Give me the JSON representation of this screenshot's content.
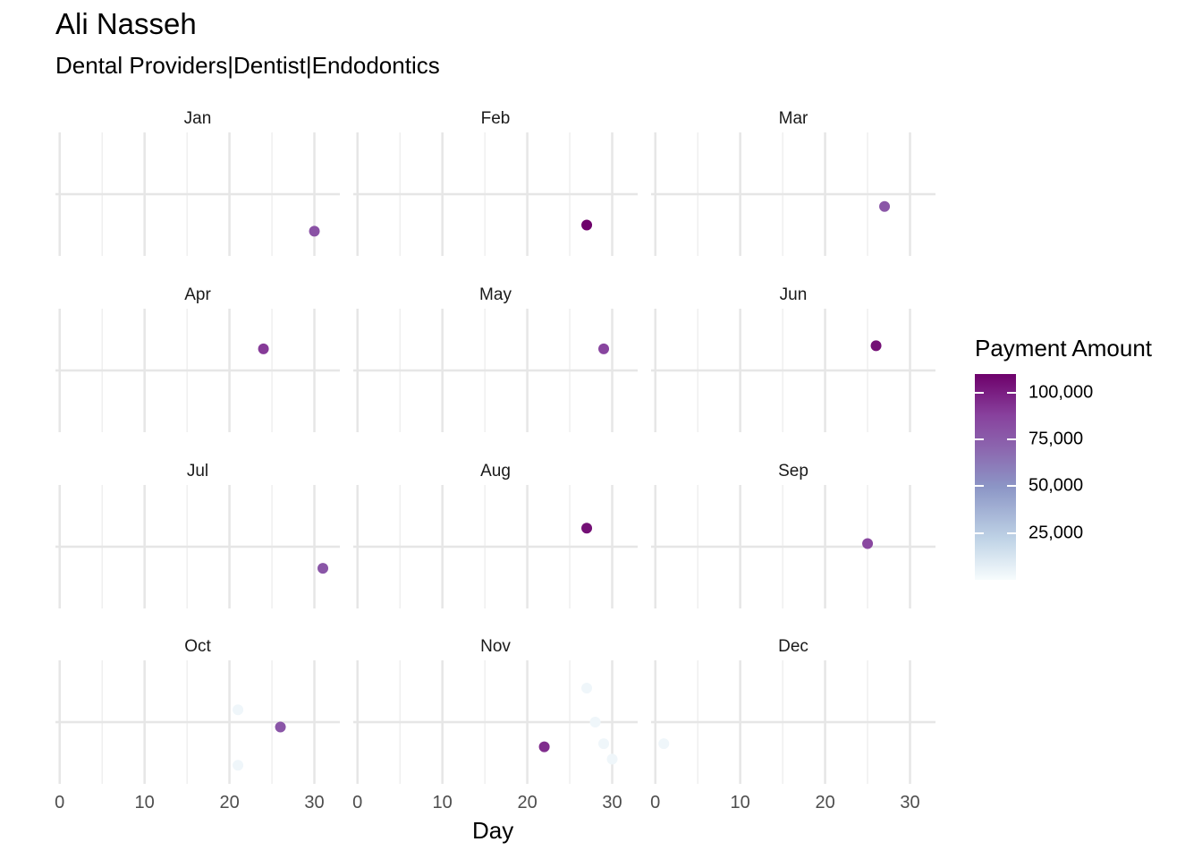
{
  "chart_data": {
    "type": "scatter",
    "title": "Ali Nasseh",
    "subtitle": "Dental Providers|Dentist|Endodontics",
    "xlabel": "Day",
    "ylabel": "",
    "xlim": [
      -0.5,
      33
    ],
    "xticks": [
      0,
      10,
      20,
      30
    ],
    "facet_by": "month",
    "grid": true,
    "legend": {
      "title": "Payment Amount",
      "position": "right",
      "type": "colorbar",
      "range": [
        0,
        110000
      ],
      "ticks": [
        100000,
        75000,
        50000,
        25000
      ],
      "tick_labels": [
        "100,000",
        "75,000",
        "50,000",
        "25,000"
      ],
      "colors": [
        "#f7fcfd",
        "#bfd3e6",
        "#8c96c6",
        "#8c6bb1",
        "#88419d",
        "#6e016b"
      ]
    },
    "facets": [
      {
        "month": "Jan",
        "points": [
          {
            "x": 30,
            "y": -0.6,
            "amount": 80000
          }
        ]
      },
      {
        "month": "Feb",
        "points": [
          {
            "x": 27,
            "y": -0.5,
            "amount": 110000
          }
        ]
      },
      {
        "month": "Mar",
        "points": [
          {
            "x": 27,
            "y": -0.2,
            "amount": 78000
          }
        ]
      },
      {
        "month": "Apr",
        "points": [
          {
            "x": 24,
            "y": 0.35,
            "amount": 90000
          }
        ]
      },
      {
        "month": "May",
        "points": [
          {
            "x": 29,
            "y": 0.35,
            "amount": 86000
          }
        ]
      },
      {
        "month": "Jun",
        "points": [
          {
            "x": 26,
            "y": 0.4,
            "amount": 105000
          }
        ]
      },
      {
        "month": "Jul",
        "points": [
          {
            "x": 31,
            "y": -0.35,
            "amount": 78000
          }
        ]
      },
      {
        "month": "Aug",
        "points": [
          {
            "x": 27,
            "y": 0.3,
            "amount": 105000
          }
        ]
      },
      {
        "month": "Sep",
        "points": [
          {
            "x": 25,
            "y": 0.05,
            "amount": 85000
          }
        ]
      },
      {
        "month": "Oct",
        "points": [
          {
            "x": 21,
            "y": 0.2,
            "amount": 3000
          },
          {
            "x": 26,
            "y": -0.08,
            "amount": 78000
          },
          {
            "x": 21,
            "y": -0.7,
            "amount": 3000
          }
        ]
      },
      {
        "month": "Nov",
        "points": [
          {
            "x": 27,
            "y": 0.55,
            "amount": 3000
          },
          {
            "x": 28,
            "y": 0.0,
            "amount": 3000
          },
          {
            "x": 22,
            "y": -0.4,
            "amount": 95000
          },
          {
            "x": 29,
            "y": -0.35,
            "amount": 3000
          },
          {
            "x": 30,
            "y": -0.6,
            "amount": 3000
          }
        ]
      },
      {
        "month": "Dec",
        "points": [
          {
            "x": 1,
            "y": -0.35,
            "amount": 3000
          }
        ]
      }
    ]
  }
}
